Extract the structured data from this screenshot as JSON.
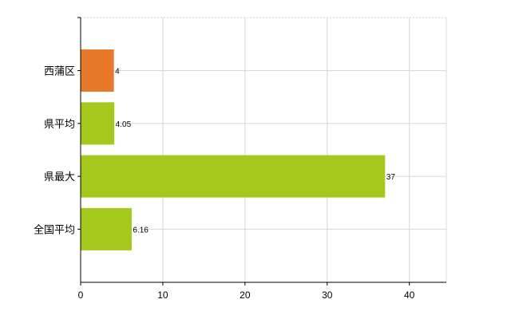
{
  "chart_data": {
    "type": "bar",
    "orientation": "horizontal",
    "categories": [
      "西蒲区",
      "県平均",
      "県最大",
      "全国平均"
    ],
    "values": [
      4,
      4.05,
      37,
      6.16
    ],
    "value_labels": [
      "4",
      "4.05",
      "37",
      "6.16"
    ],
    "bar_colors": [
      "#e8792a",
      "#a4c81c",
      "#a4c81c",
      "#a4c81c"
    ],
    "xlim": [
      0,
      44.5
    ],
    "xticks": [
      0,
      10,
      20,
      30,
      40
    ],
    "grid": true,
    "title": "",
    "xlabel": "",
    "ylabel": ""
  }
}
